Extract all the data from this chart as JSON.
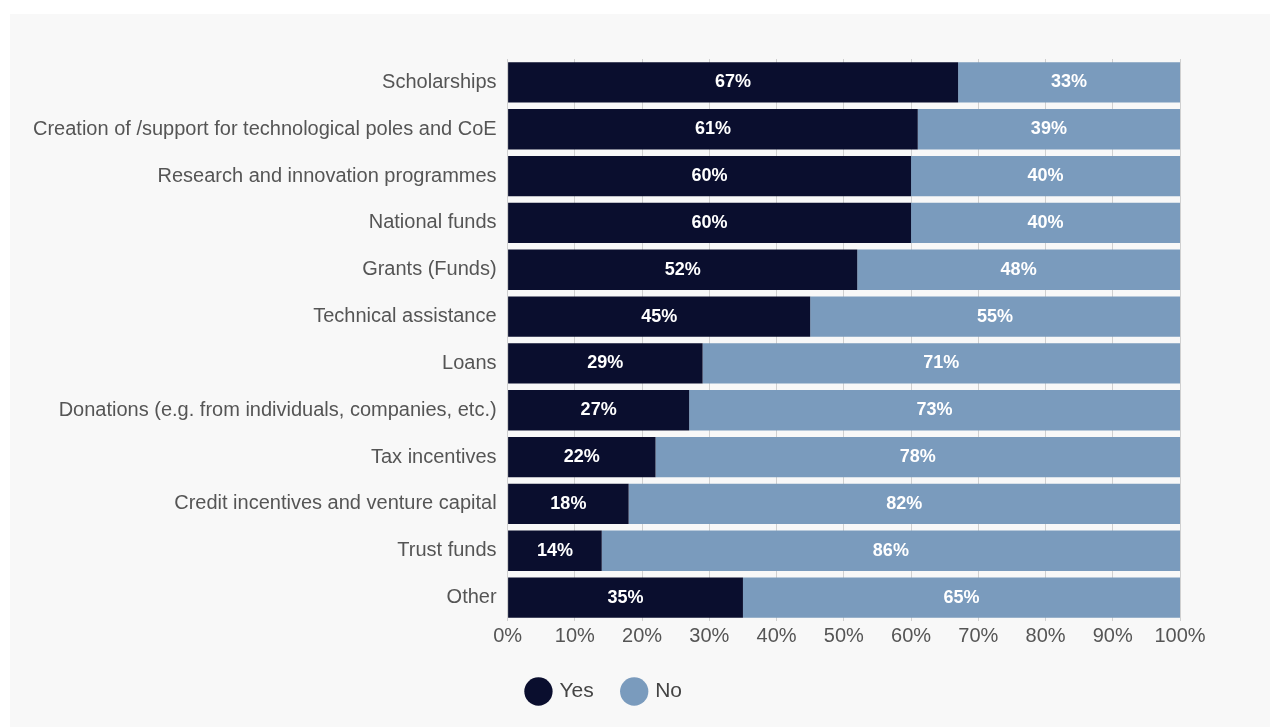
{
  "chart_data": {
    "type": "bar",
    "orientation": "horizontal",
    "stacked": true,
    "categories": [
      "Scholarships",
      "Creation of /support for technological poles and CoE",
      "Research and innovation programmes",
      "National funds",
      "Grants (Funds)",
      "Technical assistance",
      "Loans",
      "Donations (e.g. from individuals, companies, etc.)",
      "Tax incentives",
      "Credit incentives and venture capital",
      "Trust funds",
      "Other"
    ],
    "series": [
      {
        "name": "Yes",
        "color": "#0a0e2e",
        "values": [
          67,
          61,
          60,
          60,
          52,
          45,
          29,
          27,
          22,
          18,
          14,
          35
        ],
        "value_labels": [
          "67%",
          "61%",
          "60%",
          "60%",
          "52%",
          "45%",
          "29%",
          "27%",
          "22%",
          "18%",
          "14%",
          "35%"
        ]
      },
      {
        "name": "No",
        "color": "#7a9bbd",
        "values": [
          33,
          39,
          40,
          40,
          48,
          55,
          71,
          73,
          78,
          82,
          86,
          65
        ],
        "value_labels": [
          "33%",
          "39%",
          "40%",
          "40%",
          "48%",
          "55%",
          "71%",
          "73%",
          "78%",
          "82%",
          "86%",
          "65%"
        ]
      }
    ],
    "xlim": [
      0,
      100
    ],
    "xticks": [
      {
        "value": 0,
        "label": "0%"
      },
      {
        "value": 10,
        "label": "10%"
      },
      {
        "value": 20,
        "label": "20%"
      },
      {
        "value": 30,
        "label": "30%"
      },
      {
        "value": 40,
        "label": "40%"
      },
      {
        "value": 50,
        "label": "50%"
      },
      {
        "value": 60,
        "label": "60%"
      },
      {
        "value": 70,
        "label": "70%"
      },
      {
        "value": 80,
        "label": "80%"
      },
      {
        "value": 90,
        "label": "90%"
      },
      {
        "value": 100,
        "label": "100%"
      }
    ],
    "grid": "x",
    "legend": "bottom"
  }
}
